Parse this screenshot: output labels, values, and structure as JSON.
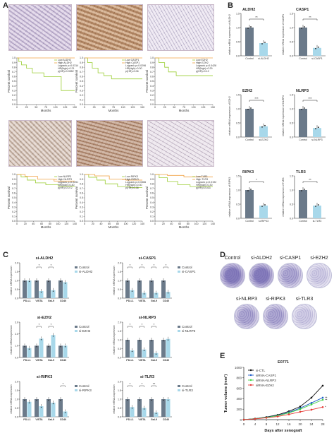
{
  "panels": {
    "A": "A",
    "B": "B",
    "C": "C",
    "D": "D",
    "E": "E"
  },
  "colors": {
    "dark": "#6b7a8a",
    "light": "#a8d8ea",
    "green": "#9acd32",
    "orange": "#f0a040",
    "red": "#e53935",
    "black": "#111111",
    "blue": "#1e5ec8",
    "lime": "#44d444"
  },
  "km_axes": {
    "xlabel": "Months",
    "ylabel": "Percent survival"
  },
  "km_plots": [
    {
      "legend": [
        "Low ALDH2",
        "High ALDH2",
        "Logrank p=0.0314",
        "HR(high)=0.21",
        "p(HR)=0.0552"
      ]
    },
    {
      "legend": [
        "Low CASP1",
        "High CASP1",
        "Logrank p=0.0296",
        "HR(high)=0.30",
        "p(HR)=0.06"
      ]
    },
    {
      "legend": [
        "Low EZH2",
        "High EZH2",
        "Logrank p=0.0428",
        "HR(high)=0.29",
        "p(HR)=0.12"
      ]
    },
    {
      "legend": [
        "Low NLRP3",
        "High NLRP3",
        "Logrank p=0.0251",
        "HR(high)=0.40",
        "p(HR)=0.072"
      ]
    },
    {
      "legend": [
        "Low RIPK3",
        "High RIPK3",
        "Logrank p=0.0366",
        "HR(high)=0.30",
        "p(HR)=0.38"
      ]
    },
    {
      "legend": [
        "Low TLR3",
        "High TLR3",
        "Logrank p=0.0192",
        "HR(high)=0.30",
        "p(HR)=0.033"
      ]
    }
  ],
  "km_xticks_a": [
    "0",
    "25",
    "50",
    "75",
    "100",
    "125",
    "150"
  ],
  "km_xticks_b": [
    "0",
    "20",
    "40",
    "60",
    "80",
    "100",
    "120",
    "140"
  ],
  "km_yticks": [
    "1.0",
    "0.9",
    "0.8",
    "0.7",
    "0.6",
    "0.5",
    "0.4",
    "0.3",
    "0.2",
    "0.1",
    "0.0"
  ],
  "chart_data": [
    {
      "type": "bar",
      "panel": "B",
      "title": "ALDH2",
      "ylabel": "relative mRNA expression of ALDH2",
      "categories": [
        "Control",
        "si-ALDH2"
      ],
      "values": [
        1.0,
        0.45
      ],
      "sig": "**",
      "ylim": [
        0,
        1.5
      ]
    },
    {
      "type": "bar",
      "panel": "B",
      "title": "CASP1",
      "ylabel": "relative mRNA expression of CASP1",
      "categories": [
        "Control",
        "si-CASP1"
      ],
      "values": [
        1.0,
        0.28
      ],
      "sig": "**",
      "ylim": [
        0,
        1.5
      ]
    },
    {
      "type": "bar",
      "panel": "B",
      "title": "EZH2",
      "ylabel": "relative mRNA expression of EZH2",
      "categories": [
        "Control",
        "si-EZH2"
      ],
      "values": [
        1.0,
        0.38
      ],
      "sig": "***",
      "ylim": [
        0,
        1.5
      ]
    },
    {
      "type": "bar",
      "panel": "B",
      "title": "NLRP3",
      "ylabel": "relative mRNA expression of NLRP3",
      "categories": [
        "Control",
        "si-NLRP3"
      ],
      "values": [
        1.0,
        0.32
      ],
      "sig": "***",
      "ylim": [
        0,
        1.5
      ]
    },
    {
      "type": "bar",
      "panel": "B",
      "title": "RIPK3",
      "ylabel": "relative mRNA expression of RIPK3",
      "categories": [
        "Control",
        "si-RIPK3"
      ],
      "values": [
        1.0,
        0.45
      ],
      "sig": "*",
      "ylim": [
        0,
        1.5
      ]
    },
    {
      "type": "bar",
      "panel": "B",
      "title": "TLR3",
      "ylabel": "relative mRNA expression of TLR3",
      "categories": [
        "Control",
        "si-TLR3"
      ],
      "values": [
        1.0,
        0.45
      ],
      "sig": "**",
      "ylim": [
        0,
        1.5
      ]
    },
    {
      "type": "bar",
      "panel": "C",
      "title": "si-ALDH2",
      "ylabel": "relative mRNA expression",
      "categories": [
        "PD-L1",
        "VISTA",
        "Gal-9",
        "CD40"
      ],
      "series": [
        {
          "name": "Control",
          "values": [
            1.0,
            1.0,
            1.0,
            1.0
          ]
        },
        {
          "name": "si-ALDH2",
          "values": [
            1.0,
            0.4,
            0.45,
            0.9
          ]
        }
      ],
      "sig": [
        "",
        "*",
        "*",
        ""
      ]
    },
    {
      "type": "bar",
      "panel": "C",
      "title": "si-CASP1",
      "ylabel": "relative mRNA expression",
      "categories": [
        "PD-L1",
        "VISTA",
        "Gal-9",
        "CD40"
      ],
      "series": [
        {
          "name": "Control",
          "values": [
            1.0,
            1.0,
            1.0,
            1.0
          ]
        },
        {
          "name": "si-CASP1",
          "values": [
            0.45,
            0.3,
            0.3,
            0.35
          ]
        }
      ],
      "sig": [
        "*",
        "*",
        "*",
        "*"
      ]
    },
    {
      "type": "bar",
      "panel": "C",
      "title": "si-EZH2",
      "ylabel": "relative mRNA expression",
      "categories": [
        "PD-L1",
        "VISTA",
        "Gal-9",
        "CD40"
      ],
      "series": [
        {
          "name": "Control",
          "values": [
            1.0,
            1.0,
            1.0,
            1.0
          ]
        },
        {
          "name": "si-EZH2",
          "values": [
            0.8,
            1.6,
            1.9,
            1.0
          ]
        }
      ],
      "sig": [
        "",
        "*",
        "*",
        ""
      ]
    },
    {
      "type": "bar",
      "panel": "C",
      "title": "si-NLRP3",
      "ylabel": "relative mRNA expression",
      "categories": [
        "PD-L1",
        "VISTA",
        "Gal-9",
        "CD40"
      ],
      "series": [
        {
          "name": "Control",
          "values": [
            1.0,
            1.0,
            1.0,
            1.0
          ]
        },
        {
          "name": "si-NLRP3",
          "values": [
            0.4,
            0.45,
            0.25,
            1.05
          ]
        }
      ],
      "sig": [
        "*",
        "*",
        "*",
        ""
      ]
    },
    {
      "type": "bar",
      "panel": "C",
      "title": "si-RIPK3",
      "ylabel": "relative mRNA expression",
      "categories": [
        "PD-L1",
        "VISTA",
        "Gal-9",
        "CD40"
      ],
      "series": [
        {
          "name": "Control",
          "values": [
            1.0,
            1.0,
            1.0,
            1.0
          ]
        },
        {
          "name": "si-RIPK3",
          "values": [
            0.85,
            0.6,
            0.8,
            0.3
          ]
        }
      ],
      "sig": [
        "",
        "",
        "",
        "*"
      ]
    },
    {
      "type": "bar",
      "panel": "C",
      "title": "si-TLR3",
      "ylabel": "relative mRNA expression",
      "categories": [
        "PD-L1",
        "VISTA",
        "Gal-9",
        "CD40"
      ],
      "series": [
        {
          "name": "Control",
          "values": [
            1.0,
            1.0,
            1.0,
            1.0
          ]
        },
        {
          "name": "si-TLR3",
          "values": [
            0.55,
            0.5,
            0.25,
            1.0
          ]
        }
      ],
      "sig": [
        "*",
        "*",
        "**",
        ""
      ]
    },
    {
      "type": "line",
      "panel": "E",
      "title": "E0771",
      "xlabel": "Days after xenograft",
      "ylabel": "Tumor volume (mm³)",
      "x": [
        0,
        4,
        8,
        12,
        16,
        20,
        24,
        28
      ],
      "ylim": [
        0,
        1000
      ],
      "xlim": [
        0,
        28
      ],
      "xticks": [
        "0",
        "4",
        "8",
        "12",
        "16",
        "20",
        "24",
        "28"
      ],
      "yticks": [
        "0",
        "200",
        "400",
        "600",
        "800",
        "1000"
      ],
      "series": [
        {
          "name": "si-CTL",
          "values": [
            0,
            20,
            50,
            90,
            160,
            250,
            420,
            650
          ]
        },
        {
          "name": "siRNA-CASP1",
          "values": [
            0,
            20,
            45,
            80,
            140,
            220,
            320,
            420
          ]
        },
        {
          "name": "siRNA-NLRP3",
          "values": [
            0,
            18,
            42,
            75,
            130,
            200,
            290,
            380
          ]
        },
        {
          "name": "siRNA-EZH2",
          "values": [
            0,
            15,
            35,
            60,
            100,
            150,
            190,
            240
          ]
        }
      ],
      "sig": [
        "**",
        "**",
        "*"
      ]
    }
  ],
  "colony": {
    "row1": [
      "Control",
      "si-ALDH2",
      "si-CASP1",
      "si-EZH2"
    ],
    "row2": [
      "si-NLRP3",
      "si-RIPK3",
      "si-TLR3"
    ]
  }
}
